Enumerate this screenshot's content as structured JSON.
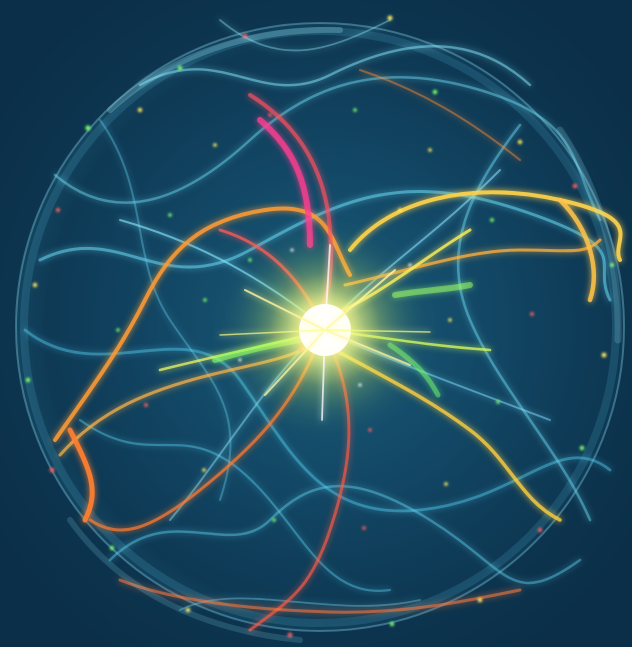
{
  "image": {
    "subject": "",
    "background_color": "#0e3550",
    "palette": {
      "cyan": "#5fd4f0",
      "teal": "#3fb7d8",
      "orange": "#ff9a32",
      "red": "#ff4f4f",
      "magenta": "#ff3f8f",
      "yellow": "#fff25a",
      "green": "#7cff6a",
      "core": "#ffffff"
    }
  }
}
